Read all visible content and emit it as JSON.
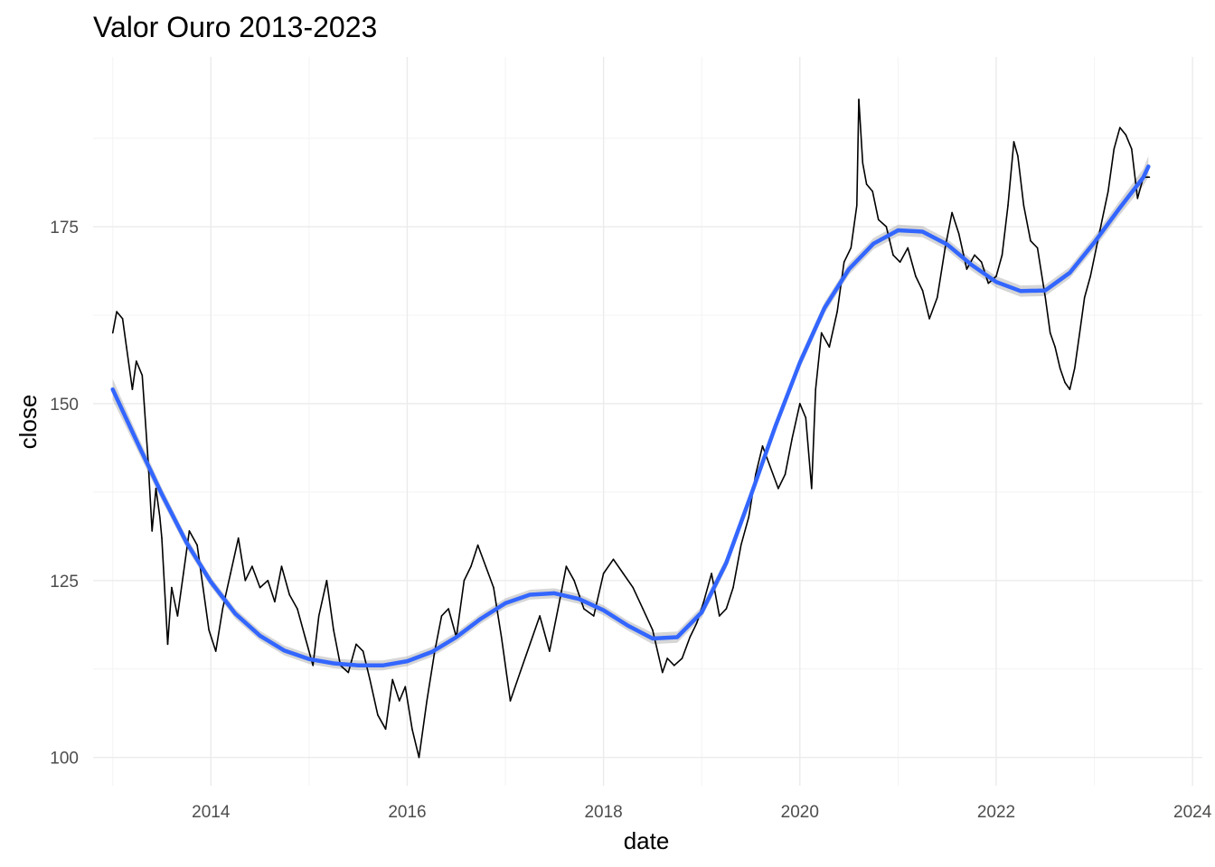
{
  "chart_data": {
    "type": "line",
    "title": "Valor Ouro 2013-2023",
    "xlabel": "date",
    "ylabel": "close",
    "xlim": [
      2012.8,
      2024.1
    ],
    "ylim": [
      96,
      199
    ],
    "x_ticks": [
      "2014",
      "2016",
      "2018",
      "2020",
      "2022",
      "2024"
    ],
    "y_ticks": [
      "100",
      "125",
      "150",
      "175"
    ],
    "grid": true,
    "legend": "none",
    "colors": {
      "price_line": "#000000",
      "smooth_line": "#3366FF",
      "confidence_band": "#999999"
    },
    "series": [
      {
        "kind": "price",
        "x": [
          2013.0,
          2013.04,
          2013.1,
          2013.14,
          2013.2,
          2013.24,
          2013.3,
          2013.32,
          2013.36,
          2013.4,
          2013.44,
          2013.48,
          2013.5,
          2013.56,
          2013.6,
          2013.66,
          2013.72,
          2013.78,
          2013.86,
          2013.92,
          2013.98,
          2014.05,
          2014.12,
          2014.2,
          2014.28,
          2014.35,
          2014.42,
          2014.5,
          2014.58,
          2014.65,
          2014.72,
          2014.8,
          2014.88,
          2014.96,
          2015.04,
          2015.1,
          2015.18,
          2015.25,
          2015.32,
          2015.4,
          2015.48,
          2015.55,
          2015.62,
          2015.7,
          2015.78,
          2015.85,
          2015.92,
          2015.98,
          2016.05,
          2016.12,
          2016.2,
          2016.28,
          2016.35,
          2016.42,
          2016.5,
          2016.58,
          2016.65,
          2016.72,
          2016.8,
          2016.88,
          2016.96,
          2017.05,
          2017.15,
          2017.25,
          2017.35,
          2017.45,
          2017.55,
          2017.62,
          2017.7,
          2017.8,
          2017.9,
          2018.0,
          2018.1,
          2018.2,
          2018.3,
          2018.4,
          2018.5,
          2018.6,
          2018.65,
          2018.72,
          2018.8,
          2018.88,
          2018.95,
          2019.02,
          2019.1,
          2019.18,
          2019.25,
          2019.32,
          2019.4,
          2019.48,
          2019.55,
          2019.62,
          2019.7,
          2019.78,
          2019.85,
          2019.92,
          2020.0,
          2020.06,
          2020.12,
          2020.16,
          2020.22,
          2020.3,
          2020.38,
          2020.45,
          2020.52,
          2020.58,
          2020.6,
          2020.64,
          2020.68,
          2020.74,
          2020.8,
          2020.88,
          2020.95,
          2021.02,
          2021.1,
          2021.18,
          2021.25,
          2021.32,
          2021.4,
          2021.48,
          2021.55,
          2021.62,
          2021.7,
          2021.78,
          2021.85,
          2021.92,
          2022.0,
          2022.06,
          2022.12,
          2022.18,
          2022.22,
          2022.28,
          2022.35,
          2022.42,
          2022.5,
          2022.55,
          2022.6,
          2022.65,
          2022.7,
          2022.75,
          2022.8,
          2022.85,
          2022.9,
          2022.96,
          2023.02,
          2023.08,
          2023.14,
          2023.2,
          2023.26,
          2023.32,
          2023.38,
          2023.44,
          2023.5,
          2023.56
        ],
        "y": [
          160,
          163,
          162,
          158,
          152,
          156,
          154,
          150,
          142,
          132,
          138,
          134,
          131,
          116,
          124,
          120,
          126,
          132,
          130,
          124,
          118,
          115,
          121,
          126,
          131,
          125,
          127,
          124,
          125,
          122,
          127,
          123,
          121,
          117,
          113,
          120,
          125,
          118,
          113,
          112,
          116,
          115,
          111,
          106,
          104,
          111,
          108,
          110,
          104,
          100,
          108,
          115,
          120,
          121,
          117,
          125,
          127,
          130,
          127,
          124,
          117,
          108,
          112,
          116,
          120,
          115,
          122,
          127,
          125,
          121,
          120,
          126,
          128,
          126,
          124,
          121,
          118,
          112,
          114,
          113,
          114,
          117,
          119,
          122,
          126,
          120,
          121,
          124,
          130,
          134,
          140,
          144,
          141,
          138,
          140,
          145,
          150,
          148,
          138,
          152,
          160,
          158,
          163,
          170,
          172,
          178,
          193,
          184,
          181,
          180,
          176,
          175,
          171,
          170,
          172,
          168,
          166,
          162,
          165,
          172,
          177,
          174,
          169,
          171,
          170,
          167,
          168,
          171,
          178,
          187,
          185,
          178,
          173,
          172,
          165,
          160,
          158,
          155,
          153,
          152,
          155,
          160,
          165,
          168,
          172,
          176,
          180,
          186,
          189,
          188,
          186,
          179,
          182,
          182
        ]
      },
      {
        "kind": "smooth",
        "x": [
          2013.0,
          2013.25,
          2013.5,
          2013.75,
          2014.0,
          2014.25,
          2014.5,
          2014.75,
          2015.0,
          2015.25,
          2015.5,
          2015.75,
          2016.0,
          2016.25,
          2016.5,
          2016.75,
          2017.0,
          2017.25,
          2017.5,
          2017.75,
          2018.0,
          2018.25,
          2018.5,
          2018.75,
          2019.0,
          2019.25,
          2019.5,
          2019.75,
          2020.0,
          2020.25,
          2020.5,
          2020.75,
          2021.0,
          2021.25,
          2021.5,
          2021.75,
          2022.0,
          2022.25,
          2022.5,
          2022.75,
          2023.0,
          2023.25,
          2023.5,
          2023.55
        ],
        "y": [
          152,
          144.5,
          137.2,
          130.4,
          124.8,
          120.3,
          117.2,
          115.1,
          113.9,
          113.3,
          113.0,
          113.0,
          113.6,
          114.9,
          117.0,
          119.6,
          121.8,
          123.0,
          123.2,
          122.4,
          120.8,
          118.6,
          116.8,
          117.0,
          120.5,
          127.5,
          137.0,
          146.8,
          155.8,
          163.5,
          169.0,
          172.6,
          174.5,
          174.3,
          172.5,
          169.6,
          167.2,
          165.9,
          166.0,
          168.5,
          172.8,
          177.5,
          182.0,
          183.5
        ],
        "band_halfwidth": [
          1.5,
          1.1,
          0.9,
          0.8,
          0.7,
          0.7,
          0.7,
          0.7,
          0.7,
          0.7,
          0.7,
          0.7,
          0.7,
          0.7,
          0.7,
          0.7,
          0.7,
          0.7,
          0.7,
          0.7,
          0.7,
          0.7,
          0.8,
          0.8,
          0.8,
          0.8,
          0.8,
          0.8,
          0.8,
          0.8,
          0.8,
          0.8,
          0.8,
          0.8,
          0.8,
          0.8,
          0.8,
          0.8,
          0.8,
          0.8,
          0.9,
          1.0,
          1.2,
          1.5
        ]
      }
    ]
  }
}
